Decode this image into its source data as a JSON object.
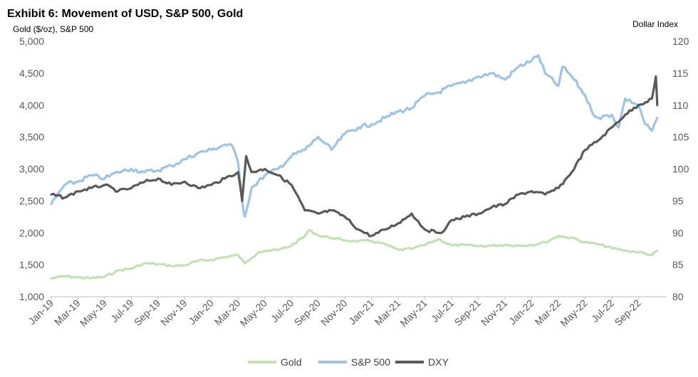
{
  "chart_data": {
    "type": "line",
    "title": "Exhibit 6: Movement of USD, S&P 500, Gold",
    "ylabel_left": "Gold ($/oz), S&P 500",
    "ylabel_right": "Dollar Index",
    "ylim_left": [
      1000,
      5000
    ],
    "ylim_right": [
      80,
      120
    ],
    "yticks_left": [
      "1,000",
      "1,500",
      "2,000",
      "2,500",
      "3,000",
      "3,500",
      "4,000",
      "4,500",
      "5,000"
    ],
    "yticks_left_values": [
      1000,
      1500,
      2000,
      2500,
      3000,
      3500,
      4000,
      4500,
      5000
    ],
    "yticks_right": [
      "80",
      "85",
      "90",
      "95",
      "100",
      "105",
      "110",
      "115",
      "120"
    ],
    "yticks_right_values": [
      80,
      85,
      90,
      95,
      100,
      105,
      110,
      115,
      120
    ],
    "x_range_months": [
      0,
      46
    ],
    "xticks": [
      "Jan-19",
      "Mar-19",
      "May-19",
      "Jul-19",
      "Sep-19",
      "Nov-19",
      "Jan-20",
      "Mar-20",
      "May-20",
      "Jul-20",
      "Sep-20",
      "Nov-20",
      "Jan-21",
      "Mar-21",
      "May-21",
      "Jul-21",
      "Sep-21",
      "Nov-21",
      "Jan-22",
      "Mar-22",
      "May-22",
      "Jul-22",
      "Sep-22"
    ],
    "xticks_months": [
      0,
      2,
      4,
      6,
      8,
      10,
      12,
      14,
      16,
      18,
      20,
      22,
      24,
      26,
      28,
      30,
      32,
      34,
      36,
      38,
      40,
      42,
      44
    ],
    "grid": false,
    "legend_position": "bottom",
    "series": [
      {
        "name": "Gold",
        "axis": "left",
        "color": "#C5E0B4",
        "x": [
          0,
          1,
          2,
          3,
          4,
          5,
          6,
          7,
          8,
          9,
          10,
          11,
          12,
          13,
          14,
          14.5,
          15,
          15.5,
          16,
          17,
          18,
          19,
          19.3,
          20,
          21,
          22,
          23,
          24,
          25,
          26,
          27,
          28,
          29,
          30,
          31,
          32,
          33,
          34,
          35,
          36,
          37,
          38,
          39,
          40,
          41,
          42,
          43,
          44,
          45,
          45.4
        ],
        "values": [
          1285,
          1320,
          1300,
          1290,
          1310,
          1410,
          1440,
          1520,
          1510,
          1480,
          1490,
          1560,
          1575,
          1620,
          1650,
          1520,
          1600,
          1700,
          1720,
          1730,
          1800,
          1950,
          2040,
          1960,
          1920,
          1880,
          1870,
          1870,
          1820,
          1730,
          1750,
          1810,
          1900,
          1800,
          1810,
          1790,
          1800,
          1810,
          1800,
          1810,
          1850,
          1950,
          1920,
          1850,
          1820,
          1760,
          1720,
          1700,
          1650,
          1720
        ]
      },
      {
        "name": "S&P 500",
        "axis": "left",
        "color": "#9DC3E6",
        "x": [
          0,
          1,
          2,
          3,
          4,
          5,
          6,
          7,
          8,
          9,
          10,
          11,
          12,
          13,
          13.5,
          14,
          14.3,
          14.5,
          15,
          16,
          17,
          18,
          19,
          20,
          20.5,
          21,
          22,
          23,
          24,
          25,
          26,
          27,
          28,
          29,
          30,
          31,
          32,
          33,
          34,
          35,
          36,
          36.5,
          37,
          38,
          38.3,
          39,
          40,
          40.5,
          41,
          42,
          42.5,
          43,
          44,
          44.5,
          45,
          45.4
        ],
        "values": [
          2450,
          2750,
          2800,
          2900,
          2850,
          2950,
          3000,
          2950,
          2980,
          3050,
          3150,
          3250,
          3300,
          3380,
          3380,
          3100,
          2500,
          2250,
          2700,
          2900,
          3000,
          3200,
          3300,
          3500,
          3400,
          3300,
          3550,
          3650,
          3700,
          3800,
          3900,
          3950,
          4150,
          4200,
          4300,
          4350,
          4450,
          4500,
          4400,
          4600,
          4700,
          4780,
          4500,
          4300,
          4600,
          4450,
          4150,
          3900,
          3800,
          3850,
          3650,
          4100,
          4000,
          3700,
          3600,
          3800
        ]
      },
      {
        "name": "DXY",
        "axis": "right",
        "color": "#595959",
        "x": [
          0,
          1,
          2,
          3,
          4,
          5,
          6,
          7,
          8,
          9,
          10,
          11,
          12,
          13,
          14,
          14.3,
          14.6,
          15,
          16,
          17,
          18,
          19,
          20,
          21,
          22,
          23,
          24,
          25,
          26,
          27,
          28,
          29,
          29.5,
          30,
          31,
          32,
          33,
          34,
          35,
          36,
          37,
          38,
          39,
          40,
          41,
          42,
          43,
          44,
          45,
          45.3,
          45.4
        ],
        "values": [
          96,
          95.5,
          96.5,
          97,
          97.5,
          96.5,
          97,
          98,
          98.5,
          97.5,
          98,
          97,
          97.5,
          98.5,
          99.5,
          95,
          102,
          99.5,
          100,
          99,
          97.5,
          93.5,
          93,
          93.5,
          92.5,
          90.5,
          89.5,
          90.5,
          91.5,
          93,
          90.5,
          90,
          90.5,
          92,
          92.5,
          93,
          94,
          94.5,
          96,
          96.5,
          96,
          97,
          99.5,
          103,
          104.5,
          106.5,
          108.5,
          110,
          111,
          114.5,
          110
        ]
      }
    ]
  }
}
